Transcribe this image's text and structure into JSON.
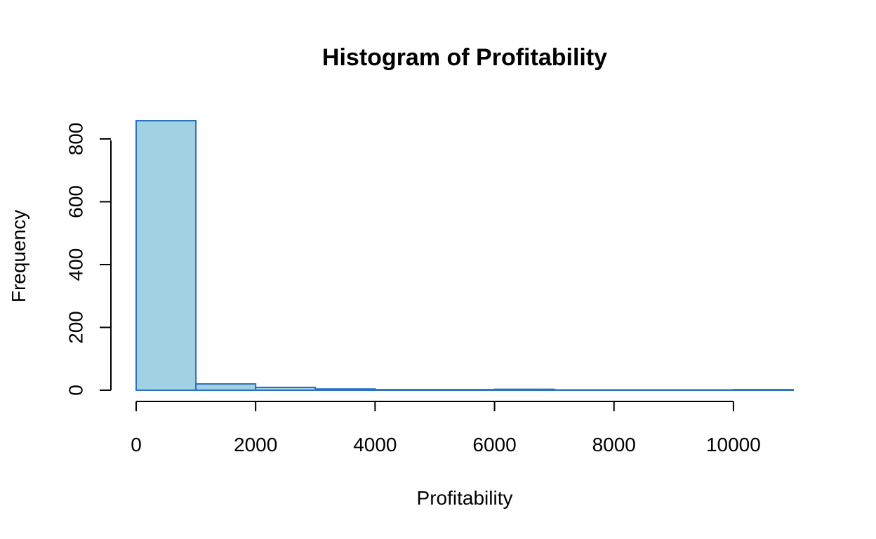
{
  "chart_data": {
    "type": "bar",
    "title": "Histogram of Profitability",
    "xlabel": "Profitability",
    "ylabel": "Frequency",
    "bins": [
      {
        "start": 0,
        "end": 1000,
        "count": 858
      },
      {
        "start": 1000,
        "end": 2000,
        "count": 20
      },
      {
        "start": 2000,
        "end": 3000,
        "count": 9
      },
      {
        "start": 3000,
        "end": 4000,
        "count": 4
      },
      {
        "start": 4000,
        "end": 5000,
        "count": 2
      },
      {
        "start": 5000,
        "end": 6000,
        "count": 2
      },
      {
        "start": 6000,
        "end": 7000,
        "count": 3
      },
      {
        "start": 7000,
        "end": 8000,
        "count": 1
      },
      {
        "start": 8000,
        "end": 9000,
        "count": 1
      },
      {
        "start": 9000,
        "end": 10000,
        "count": 1
      },
      {
        "start": 10000,
        "end": 11000,
        "count": 2
      }
    ],
    "x_ticks": [
      "0",
      "2000",
      "4000",
      "6000",
      "8000",
      "10000"
    ],
    "y_ticks": [
      "0",
      "200",
      "400",
      "600",
      "800"
    ],
    "x_tick_values": [
      0,
      2000,
      4000,
      6000,
      8000,
      10000
    ],
    "y_tick_values": [
      0,
      200,
      400,
      600,
      800
    ],
    "xlim": [
      0,
      11000
    ],
    "ylim": [
      0,
      858
    ],
    "grid": false,
    "legend": "none",
    "bar_fill": "#a1d1e3",
    "bar_stroke": "#2a72c4"
  }
}
